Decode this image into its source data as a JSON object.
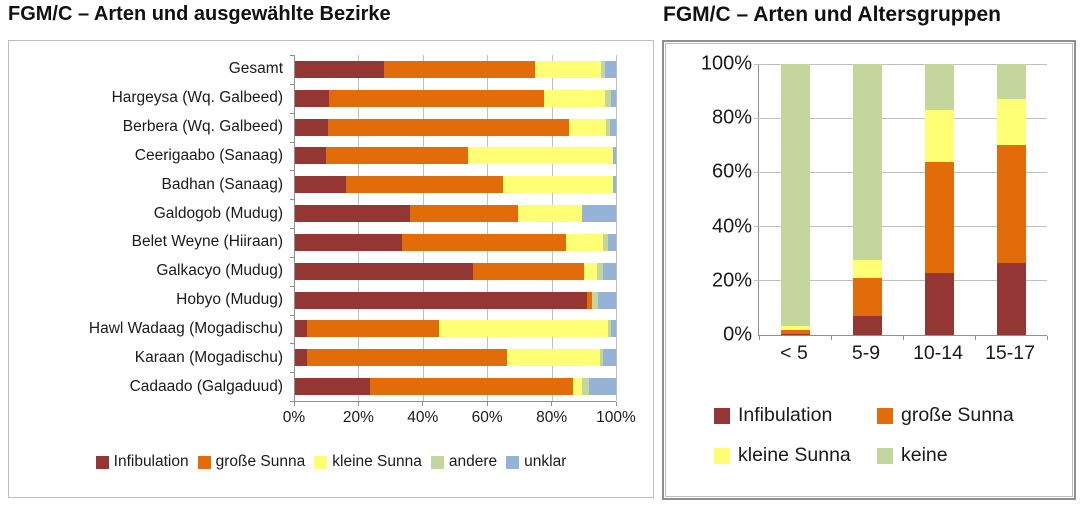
{
  "chart_data": [
    {
      "id": "bezirke",
      "type": "bar",
      "orientation": "horizontal",
      "stacked": true,
      "title": "FGM/C – Arten und ausgewählte Bezirke",
      "categories": [
        "Gesamt",
        "Hargeysa (Wq. Galbeed)",
        "Berbera (Wq. Galbeed)",
        "Ceerigaabo (Sanaag)",
        "Badhan (Sanaag)",
        "Galdogob (Mudug)",
        "Belet Weyne (Hiiraan)",
        "Galkacyo (Mudug)",
        "Hobyo (Mudug)",
        "Hawl Wadaag (Mogadischu)",
        "Karaan (Mogadischu)",
        "Cadaado (Galgaduud)"
      ],
      "series": [
        {
          "name": "Infibulation",
          "color": "#943634",
          "values": [
            28,
            11,
            10.5,
            10,
            16,
            36,
            33.5,
            55.5,
            91,
            4,
            4,
            23.5
          ]
        },
        {
          "name": "große Sunna",
          "color": "#E36C0A",
          "values": [
            47,
            66.5,
            75,
            44,
            49,
            33.5,
            51,
            34.5,
            1.5,
            41,
            62,
            63
          ]
        },
        {
          "name": "kleine Sunna",
          "color": "#FFFF75",
          "values": [
            20.5,
            19,
            11.5,
            45,
            34,
            20,
            11.5,
            4,
            0,
            52.5,
            29,
            3
          ]
        },
        {
          "name": "andere",
          "color": "#C3D69B",
          "values": [
            1,
            2,
            1,
            0,
            0,
            0,
            1.5,
            2,
            2,
            1,
            1,
            2
          ]
        },
        {
          "name": "unklar",
          "color": "#95B3D7",
          "values": [
            3.5,
            1.5,
            2,
            1,
            1,
            10.5,
            2.5,
            4,
            5.5,
            1.5,
            4,
            8.5
          ]
        }
      ],
      "x_ticks": [
        "0%",
        "20%",
        "40%",
        "60%",
        "80%",
        "100%"
      ],
      "xlim": [
        0,
        100
      ],
      "grid": true,
      "legend_position": "bottom"
    },
    {
      "id": "altersgruppen",
      "type": "bar",
      "orientation": "vertical",
      "stacked": true,
      "title": "FGM/C – Arten und Altersgruppen",
      "categories": [
        "< 5",
        "5-9",
        "10-14",
        "15-17"
      ],
      "series": [
        {
          "name": "Infibulation",
          "color": "#943634",
          "values": [
            0.5,
            7,
            23,
            26.5
          ]
        },
        {
          "name": "große Sunna",
          "color": "#E36C0A",
          "values": [
            1.5,
            14,
            41,
            43.5
          ]
        },
        {
          "name": "kleine Sunna",
          "color": "#FFFF75",
          "values": [
            1.5,
            6.5,
            19,
            17
          ]
        },
        {
          "name": "keine",
          "color": "#C3D69B",
          "values": [
            96.5,
            72.5,
            17,
            13
          ]
        }
      ],
      "y_ticks": [
        "0%",
        "20%",
        "40%",
        "60%",
        "80%",
        "100%"
      ],
      "ylim": [
        0,
        100
      ],
      "grid": true,
      "legend_position": "bottom"
    }
  ]
}
